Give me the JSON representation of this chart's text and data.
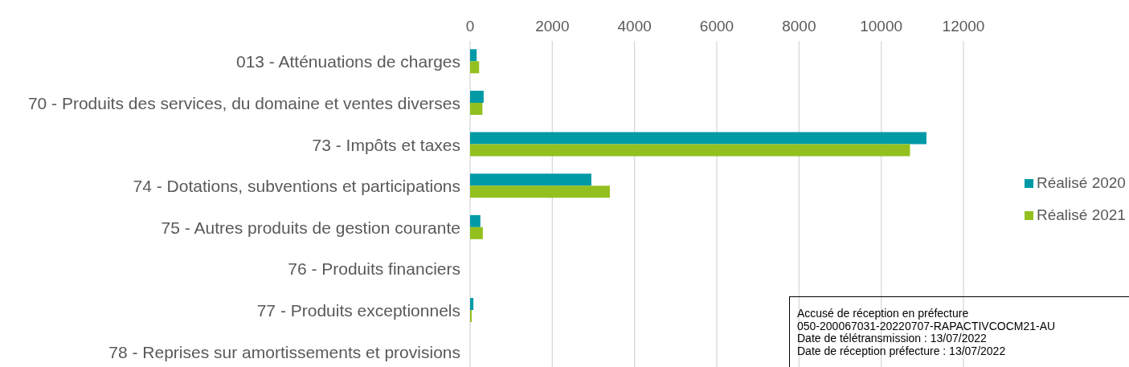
{
  "chart_data": {
    "type": "bar",
    "orientation": "horizontal",
    "categories": [
      "013 - Atténuations de charges",
      "70 - Produits des services, du domaine et ventes diverses",
      "73 - Impôts et taxes",
      "74 - Dotations, subventions et participations",
      "75 - Autres produits de gestion courante",
      "76 - Produits financiers",
      "77 - Produits exceptionnels",
      "78 - Reprises sur amortissements et provisions"
    ],
    "series": [
      {
        "name": "Réalisé 2020",
        "color": "#009aa6",
        "values": [
          160,
          330,
          11100,
          2950,
          250,
          0,
          80,
          0
        ]
      },
      {
        "name": "Réalisé 2021",
        "color": "#93c01f",
        "values": [
          220,
          300,
          10700,
          3400,
          310,
          0,
          40,
          0
        ]
      }
    ],
    "xlim": [
      0,
      12000
    ],
    "xticks": [
      0,
      2000,
      4000,
      6000,
      8000,
      10000,
      12000
    ],
    "grid": "x",
    "legend": "right",
    "annotations": [
      "Accusé de réception en préfecture",
      "050-200067031-20220707-RAPACTIVCOCM21-AU",
      "Date de télétransmission : 13/07/2022",
      "Date de réception préfecture : 13/07/2022"
    ]
  }
}
